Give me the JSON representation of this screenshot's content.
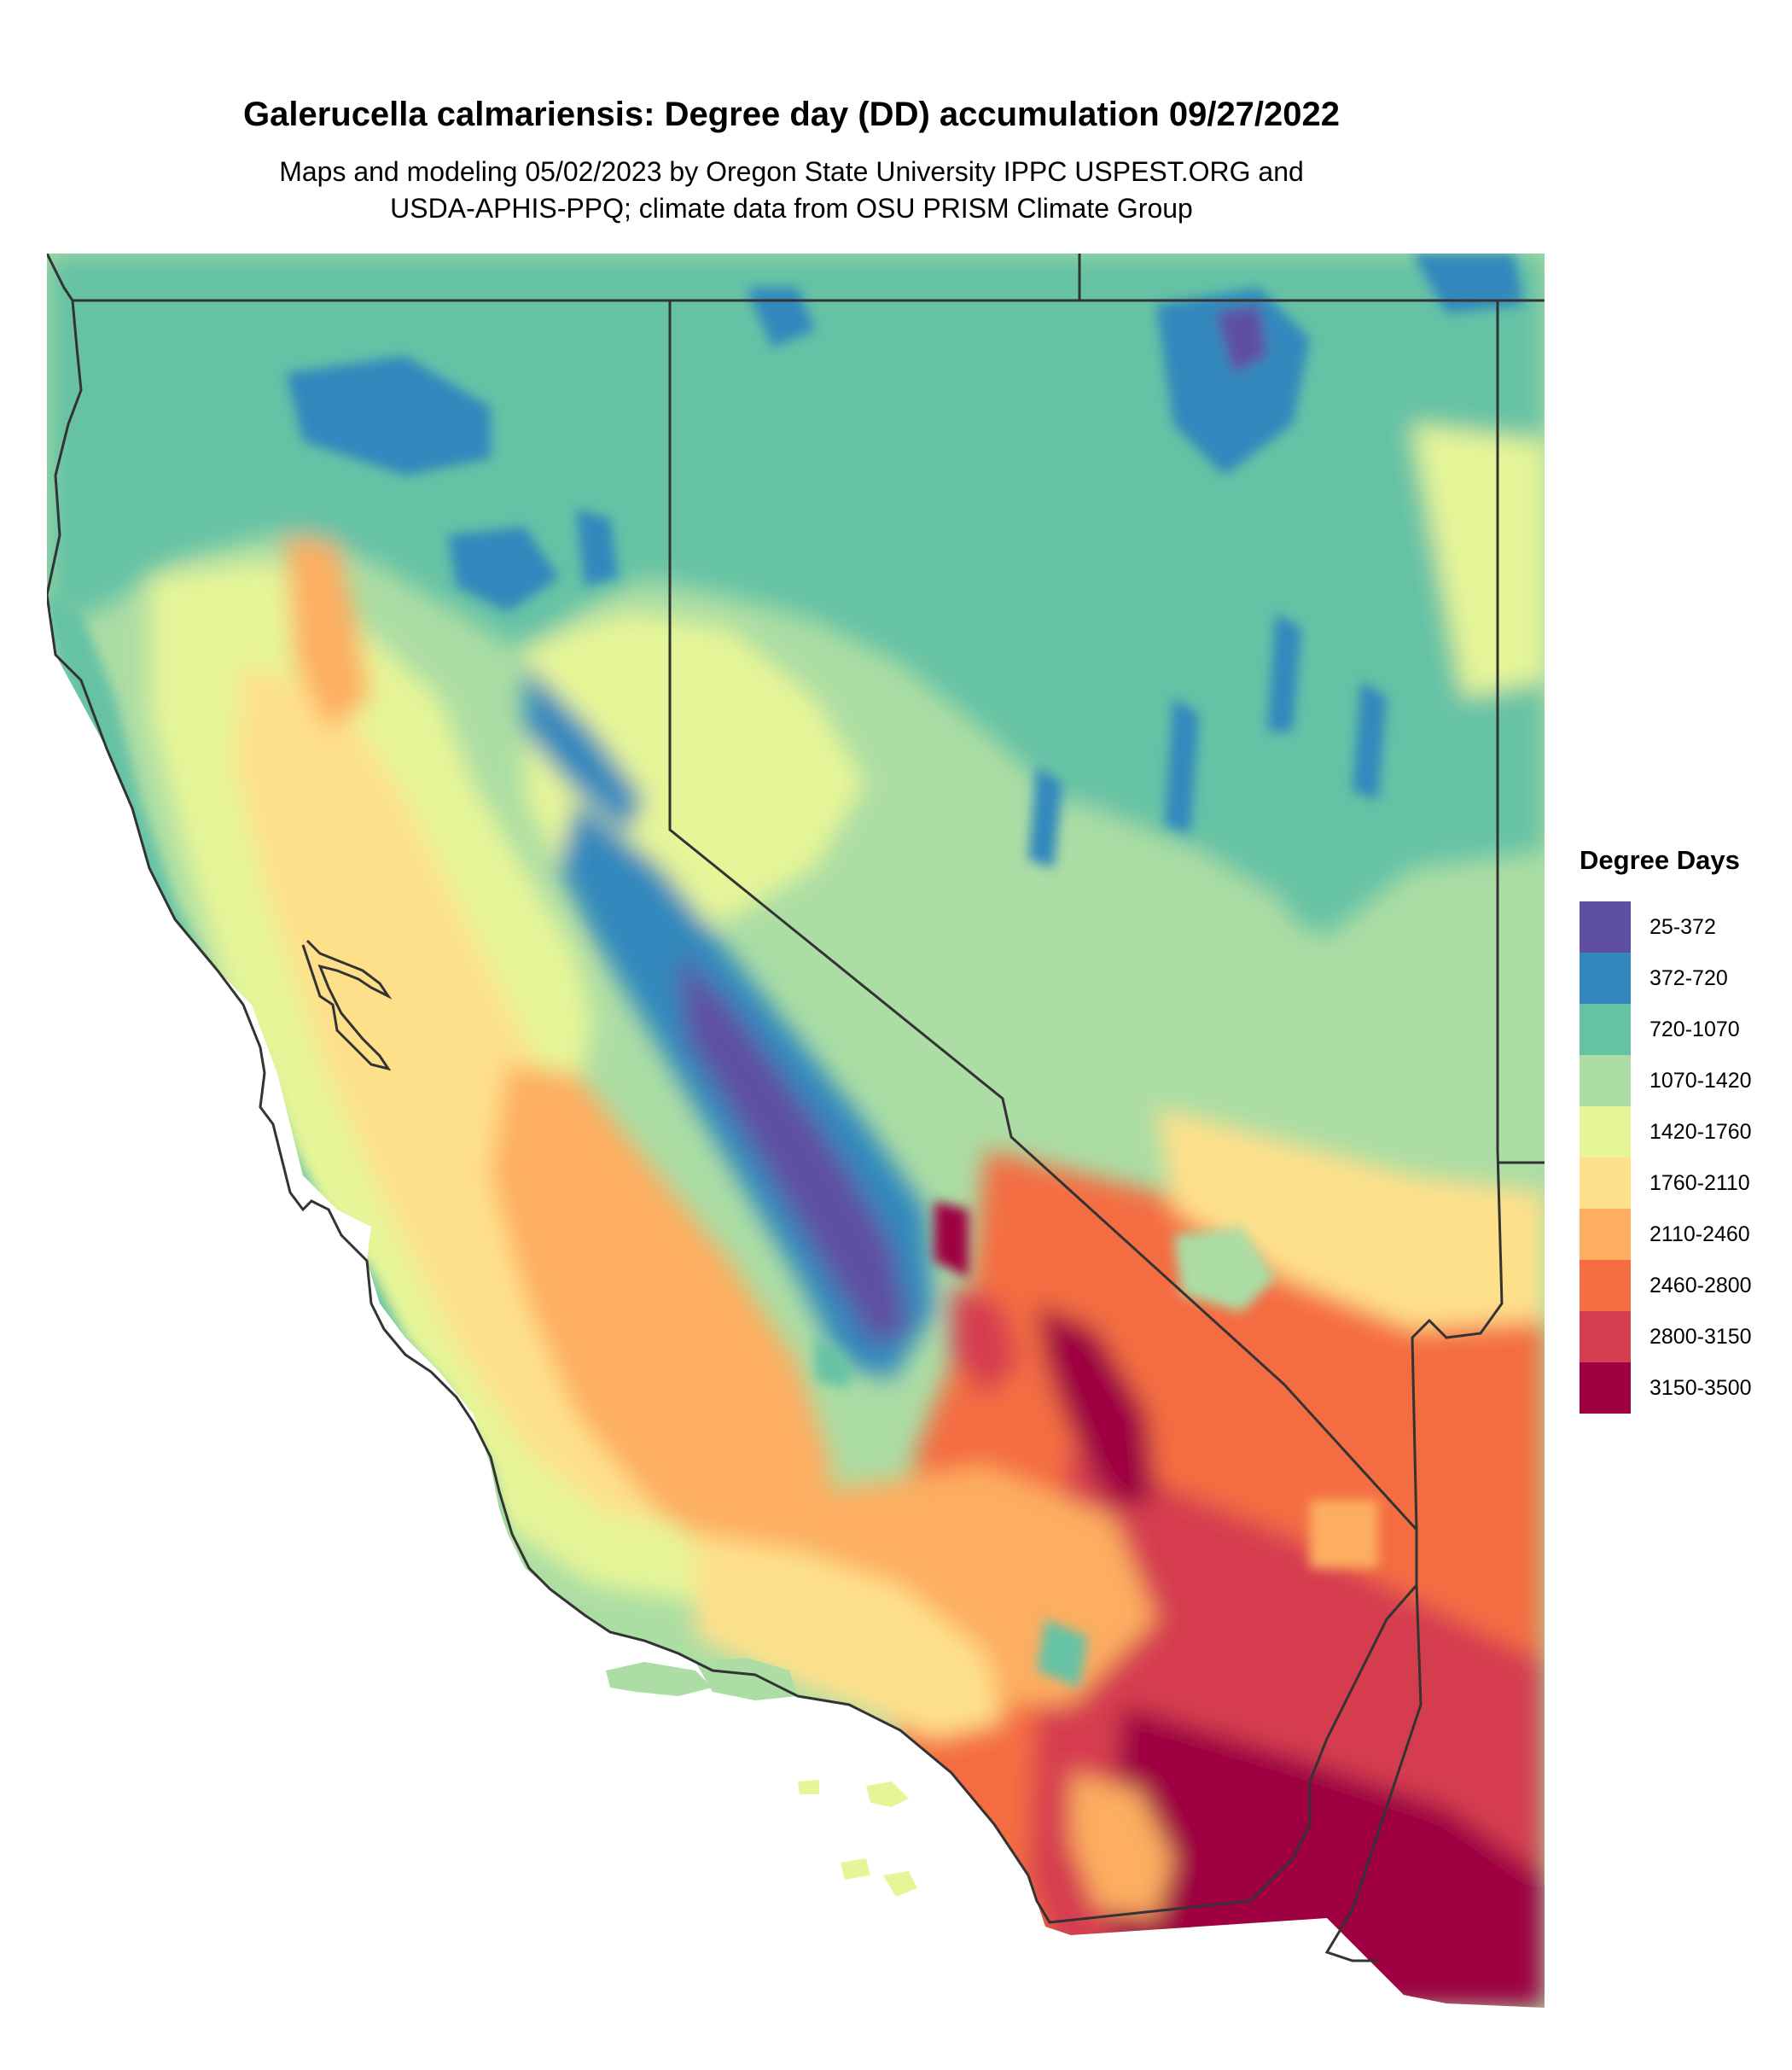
{
  "title": "Galerucella calmariensis: Degree day (DD) accumulation 09/27/2022",
  "subtitle_line1": "Maps and modeling 05/02/2023 by Oregon State University IPPC USPEST.ORG and",
  "subtitle_line2": "USDA-APHIS-PPQ; climate data from OSU PRISM Climate Group",
  "legend": {
    "title": "Degree Days",
    "items": [
      {
        "label": "25-372",
        "color": "#5e4fa2"
      },
      {
        "label": "372-720",
        "color": "#3288bd"
      },
      {
        "label": "720-1070",
        "color": "#66c2a5"
      },
      {
        "label": "1070-1420",
        "color": "#abdda4"
      },
      {
        "label": "1420-1760",
        "color": "#e6f598"
      },
      {
        "label": "1760-2110",
        "color": "#fee08b"
      },
      {
        "label": "2110-2460",
        "color": "#fdae61"
      },
      {
        "label": "2460-2800",
        "color": "#f46d43"
      },
      {
        "label": "2800-3150",
        "color": "#d53e4f"
      },
      {
        "label": "3150-3500",
        "color": "#9e0142"
      }
    ]
  },
  "map": {
    "region": "California and Nevada",
    "border_color": "#333333"
  }
}
